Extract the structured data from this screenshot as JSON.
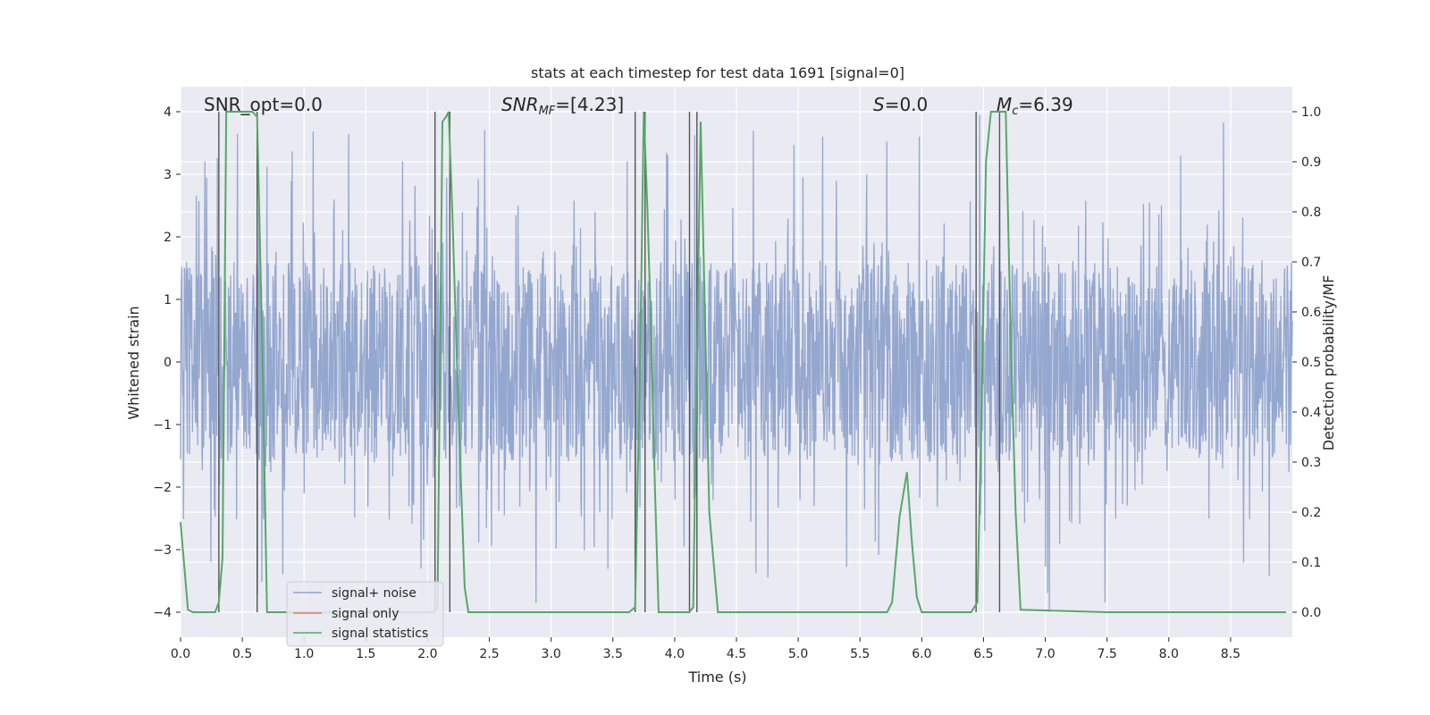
{
  "chart_data": {
    "type": "line",
    "title": "stats at each timestep for test data 1691 [signal=0]",
    "xlabel": "Time (s)",
    "ylabel_left": "Whitened strain",
    "ylabel_right": "Detection probability/MF",
    "xlim": [
      0.0,
      9.0
    ],
    "ylim_left": [
      -4.4,
      4.4
    ],
    "ylim_right": [
      -0.05,
      1.05
    ],
    "x_ticks": [
      "0.0",
      "0.5",
      "1.0",
      "1.5",
      "2.0",
      "2.5",
      "3.0",
      "3.5",
      "4.0",
      "4.5",
      "5.0",
      "5.5",
      "6.0",
      "6.5",
      "7.0",
      "7.5",
      "8.0",
      "8.5"
    ],
    "y_ticks_left": [
      "−4",
      "−3",
      "−2",
      "−1",
      "0",
      "1",
      "2",
      "3",
      "4"
    ],
    "y_ticks_right": [
      "0.0",
      "0.1",
      "0.2",
      "0.3",
      "0.4",
      "0.5",
      "0.6",
      "0.7",
      "0.8",
      "0.9",
      "1.0"
    ],
    "grid": true,
    "legend_position": "lower-left",
    "annotations": {
      "snr_opt": "SNR_opt=0.0",
      "snr_mf_base": "SNR",
      "snr_mf_sub": "MF",
      "snr_mf_value": "=[4.23]",
      "s_base": "S",
      "s_value": "=0.0",
      "mc_base": "M",
      "mc_sub": "c",
      "mc_value": "=6.39"
    },
    "series": [
      {
        "name": "signal+ noise",
        "color": "#8fa3cc",
        "axis": "left",
        "description": "dense noise trace",
        "envelope_core": 1.6,
        "peak_max": 4.0,
        "trough_min": -4.0,
        "seed": 1691
      },
      {
        "name": "signal only",
        "color": "#dd8452",
        "axis": "left",
        "x": [],
        "y": []
      },
      {
        "name": "signal statistics",
        "color": "#55a868",
        "axis": "right",
        "x": [
          0.0,
          0.06,
          0.1,
          0.2,
          0.25,
          0.28,
          0.31,
          0.34,
          0.37,
          0.4,
          0.5,
          0.58,
          0.62,
          0.66,
          0.7,
          1.0,
          1.5,
          2.0,
          2.05,
          2.08,
          2.12,
          2.15,
          2.17,
          2.2,
          2.25,
          2.3,
          2.33,
          2.5,
          3.0,
          3.2,
          3.5,
          3.63,
          3.68,
          3.72,
          3.75,
          3.78,
          3.81,
          3.84,
          3.87,
          4.0,
          4.12,
          4.15,
          4.18,
          4.21,
          4.24,
          4.28,
          4.35,
          5.0,
          5.5,
          5.72,
          5.76,
          5.82,
          5.88,
          5.92,
          5.96,
          6.0,
          6.4,
          6.45,
          6.48,
          6.52,
          6.56,
          6.6,
          6.64,
          6.68,
          6.72,
          6.76,
          6.8,
          7.5,
          8.0,
          8.5,
          8.95
        ],
        "y": [
          0.18,
          0.005,
          0.0,
          0.0,
          0.0,
          0.0,
          0.02,
          0.11,
          1.0,
          1.0,
          1.0,
          1.0,
          0.99,
          0.55,
          0.0,
          0.0,
          0.0,
          0.0,
          0.0,
          0.01,
          0.98,
          0.99,
          1.0,
          0.8,
          0.4,
          0.05,
          0.0,
          0.0,
          0.0,
          0.0,
          0.0,
          0.0,
          0.01,
          0.5,
          1.0,
          0.8,
          0.55,
          0.25,
          0.0,
          0.0,
          0.0,
          0.01,
          0.5,
          0.98,
          0.65,
          0.2,
          0.0,
          0.0,
          0.0,
          0.0,
          0.02,
          0.19,
          0.28,
          0.14,
          0.03,
          0.0,
          0.0,
          0.02,
          0.35,
          0.9,
          1.0,
          1.0,
          1.0,
          1.0,
          0.55,
          0.2,
          0.005,
          0.0,
          0.0,
          0.0,
          0.0
        ]
      }
    ],
    "vertical_markers": [
      0.31,
      0.62,
      2.06,
      2.18,
      3.68,
      3.76,
      4.12,
      4.18,
      6.44,
      6.63
    ]
  }
}
